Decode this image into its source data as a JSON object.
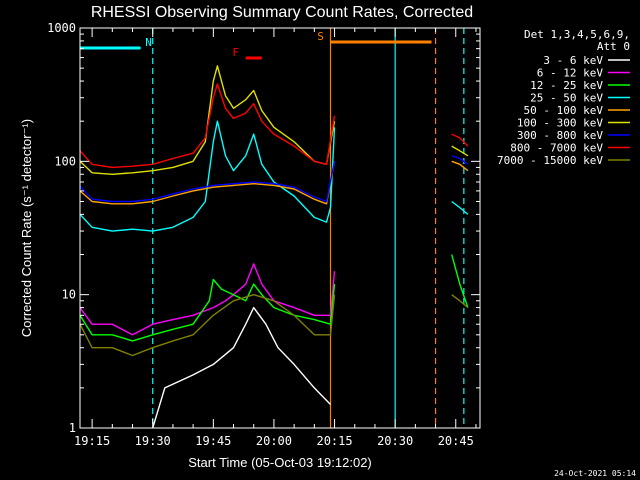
{
  "chart_data": {
    "type": "line",
    "title": "RHESSI Observing Summary Count Rates, Corrected",
    "xlabel": "Start Time (05-Oct-03 19:12:02)",
    "ylabel": "Corrected Count Rate (s⁻¹ detector⁻¹)",
    "ylog": true,
    "ylim": [
      1,
      1000
    ],
    "xlim": [
      "19:12",
      "20:51"
    ],
    "x_ticks": [
      "19:15",
      "19:30",
      "19:45",
      "20:00",
      "20:15",
      "20:30",
      "20:45"
    ],
    "y_ticks": [
      "1",
      "10",
      "100",
      "1000"
    ],
    "legend_header": [
      "Det 1,3,4,5,6,9,",
      "Att 0"
    ],
    "legend_placement": "right",
    "timestamp": "24-Oct-2021 05:14",
    "annotations": [
      {
        "label": "N",
        "color": "#00ffff",
        "t_start": "19:12",
        "t_end": "19:27"
      },
      {
        "label": "F",
        "color": "#ff0000",
        "t_start": "19:53",
        "t_end": "19:57"
      },
      {
        "label": "S",
        "color": "#ff8000",
        "t_start": "20:14",
        "t_end": "20:39"
      }
    ],
    "night_boundaries": [
      {
        "t": "19:30",
        "color": "#00ffff",
        "style": "dashed"
      },
      {
        "t": "20:30",
        "color": "#00ffff",
        "style": "solid"
      },
      {
        "t": "20:47",
        "color": "#00ffff",
        "style": "dashed"
      },
      {
        "t": "20:14",
        "color": "#ff8000",
        "style": "solid"
      },
      {
        "t": "20:40",
        "color": "#ff8000",
        "style": "dashed"
      }
    ],
    "gap": [
      "20:15",
      "20:43"
    ],
    "series": [
      {
        "name": "3 - 6 keV",
        "color": "#ffffff",
        "points": [
          [
            "19:30",
            1
          ],
          [
            "19:33",
            2
          ],
          [
            "19:40",
            2.5
          ],
          [
            "19:45",
            3
          ],
          [
            "19:50",
            4
          ],
          [
            "19:53",
            6
          ],
          [
            "19:55",
            8
          ],
          [
            "19:58",
            6
          ],
          [
            "20:01",
            4
          ],
          [
            "20:05",
            3
          ],
          [
            "20:10",
            2
          ],
          [
            "20:14",
            1.5
          ]
        ]
      },
      {
        "name": "6 - 12 keV",
        "color": "#ff00ff",
        "points": [
          [
            "19:12",
            8
          ],
          [
            "19:15",
            6
          ],
          [
            "19:20",
            6
          ],
          [
            "19:25",
            5
          ],
          [
            "19:30",
            6
          ],
          [
            "19:35",
            6.5
          ],
          [
            "19:40",
            7
          ],
          [
            "19:45",
            8
          ],
          [
            "19:48",
            9
          ],
          [
            "19:50",
            10
          ],
          [
            "19:53",
            12
          ],
          [
            "19:55",
            17
          ],
          [
            "19:57",
            12
          ],
          [
            "20:00",
            9
          ],
          [
            "20:05",
            8
          ],
          [
            "20:10",
            7
          ],
          [
            "20:14",
            7
          ],
          [
            "20:15",
            15
          ]
        ]
      },
      {
        "name": "12 - 25 keV",
        "color": "#00ff00",
        "points": [
          [
            "19:12",
            7
          ],
          [
            "19:15",
            5
          ],
          [
            "19:20",
            5
          ],
          [
            "19:25",
            4.5
          ],
          [
            "19:30",
            5
          ],
          [
            "19:35",
            5.5
          ],
          [
            "19:40",
            6
          ],
          [
            "19:44",
            9
          ],
          [
            "19:45",
            13
          ],
          [
            "19:47",
            11
          ],
          [
            "19:50",
            10
          ],
          [
            "19:53",
            9
          ],
          [
            "19:55",
            12
          ],
          [
            "19:57",
            10
          ],
          [
            "20:00",
            8
          ],
          [
            "20:05",
            7
          ],
          [
            "20:10",
            6.5
          ],
          [
            "20:14",
            6
          ],
          [
            "20:15",
            12
          ],
          [
            "20:44",
            20
          ],
          [
            "20:46",
            12
          ],
          [
            "20:48",
            8
          ]
        ]
      },
      {
        "name": "25 - 50 keV",
        "color": "#00ffff",
        "points": [
          [
            "19:12",
            40
          ],
          [
            "19:15",
            32
          ],
          [
            "19:20",
            30
          ],
          [
            "19:25",
            31
          ],
          [
            "19:30",
            30
          ],
          [
            "19:35",
            32
          ],
          [
            "19:40",
            38
          ],
          [
            "19:43",
            50
          ],
          [
            "19:45",
            140
          ],
          [
            "19:46",
            200
          ],
          [
            "19:48",
            110
          ],
          [
            "19:50",
            85
          ],
          [
            "19:53",
            110
          ],
          [
            "19:55",
            160
          ],
          [
            "19:57",
            95
          ],
          [
            "20:00",
            70
          ],
          [
            "20:05",
            55
          ],
          [
            "20:10",
            38
          ],
          [
            "20:13",
            35
          ],
          [
            "20:14",
            45
          ],
          [
            "20:15",
            180
          ],
          [
            "20:44",
            50
          ],
          [
            "20:46",
            45
          ],
          [
            "20:48",
            40
          ]
        ]
      },
      {
        "name": "50 - 100 keV",
        "color": "#ffa500",
        "points": [
          [
            "19:12",
            60
          ],
          [
            "19:15",
            50
          ],
          [
            "19:20",
            48
          ],
          [
            "19:25",
            48
          ],
          [
            "19:30",
            50
          ],
          [
            "19:35",
            55
          ],
          [
            "19:40",
            60
          ],
          [
            "19:45",
            64
          ],
          [
            "19:50",
            66
          ],
          [
            "19:55",
            68
          ],
          [
            "20:00",
            66
          ],
          [
            "20:05",
            62
          ],
          [
            "20:10",
            52
          ],
          [
            "20:13",
            48
          ],
          [
            "20:15",
            100
          ],
          [
            "20:44",
            100
          ],
          [
            "20:46",
            95
          ],
          [
            "20:48",
            85
          ]
        ]
      },
      {
        "name": "100 - 300 keV",
        "color": "#e0e000",
        "points": [
          [
            "19:12",
            100
          ],
          [
            "19:15",
            82
          ],
          [
            "19:20",
            80
          ],
          [
            "19:25",
            82
          ],
          [
            "19:30",
            85
          ],
          [
            "19:35",
            90
          ],
          [
            "19:40",
            100
          ],
          [
            "19:43",
            140
          ],
          [
            "19:45",
            400
          ],
          [
            "19:46",
            520
          ],
          [
            "19:48",
            310
          ],
          [
            "19:50",
            250
          ],
          [
            "19:53",
            290
          ],
          [
            "19:55",
            340
          ],
          [
            "19:57",
            240
          ],
          [
            "20:00",
            180
          ],
          [
            "20:05",
            140
          ],
          [
            "20:10",
            100
          ],
          [
            "20:13",
            95
          ],
          [
            "20:15",
            200
          ],
          [
            "20:44",
            130
          ],
          [
            "20:46",
            120
          ],
          [
            "20:48",
            110
          ]
        ]
      },
      {
        "name": "300 - 800 keV",
        "color": "#0000ff",
        "points": [
          [
            "19:12",
            65
          ],
          [
            "19:15",
            52
          ],
          [
            "19:20",
            50
          ],
          [
            "19:25",
            50
          ],
          [
            "19:30",
            52
          ],
          [
            "19:35",
            57
          ],
          [
            "19:40",
            62
          ],
          [
            "19:45",
            66
          ],
          [
            "19:50",
            68
          ],
          [
            "19:55",
            70
          ],
          [
            "20:00",
            68
          ],
          [
            "20:05",
            64
          ],
          [
            "20:10",
            54
          ],
          [
            "20:13",
            50
          ],
          [
            "20:15",
            100
          ],
          [
            "20:44",
            110
          ],
          [
            "20:46",
            105
          ],
          [
            "20:48",
            95
          ]
        ]
      },
      {
        "name": "800 - 7000 keV",
        "color": "#ff0000",
        "points": [
          [
            "19:12",
            120
          ],
          [
            "19:15",
            95
          ],
          [
            "19:20",
            90
          ],
          [
            "19:25",
            92
          ],
          [
            "19:30",
            95
          ],
          [
            "19:35",
            105
          ],
          [
            "19:40",
            115
          ],
          [
            "19:43",
            150
          ],
          [
            "19:45",
            300
          ],
          [
            "19:46",
            380
          ],
          [
            "19:48",
            250
          ],
          [
            "19:50",
            210
          ],
          [
            "19:53",
            230
          ],
          [
            "19:55",
            270
          ],
          [
            "19:57",
            200
          ],
          [
            "20:00",
            160
          ],
          [
            "20:05",
            130
          ],
          [
            "20:10",
            100
          ],
          [
            "20:13",
            95
          ],
          [
            "20:15",
            220
          ],
          [
            "20:44",
            160
          ],
          [
            "20:46",
            150
          ],
          [
            "20:48",
            130
          ]
        ]
      },
      {
        "name": "7000 - 15000 keV",
        "color": "#808000",
        "points": [
          [
            "19:12",
            6
          ],
          [
            "19:15",
            4
          ],
          [
            "19:20",
            4
          ],
          [
            "19:25",
            3.5
          ],
          [
            "19:30",
            4
          ],
          [
            "19:35",
            4.5
          ],
          [
            "19:40",
            5
          ],
          [
            "19:45",
            7
          ],
          [
            "19:50",
            9
          ],
          [
            "19:55",
            10
          ],
          [
            "20:00",
            9
          ],
          [
            "20:05",
            7
          ],
          [
            "20:10",
            5
          ],
          [
            "20:14",
            5
          ],
          [
            "20:15",
            10
          ],
          [
            "20:44",
            10
          ],
          [
            "20:46",
            9
          ],
          [
            "20:48",
            8
          ]
        ]
      }
    ]
  }
}
